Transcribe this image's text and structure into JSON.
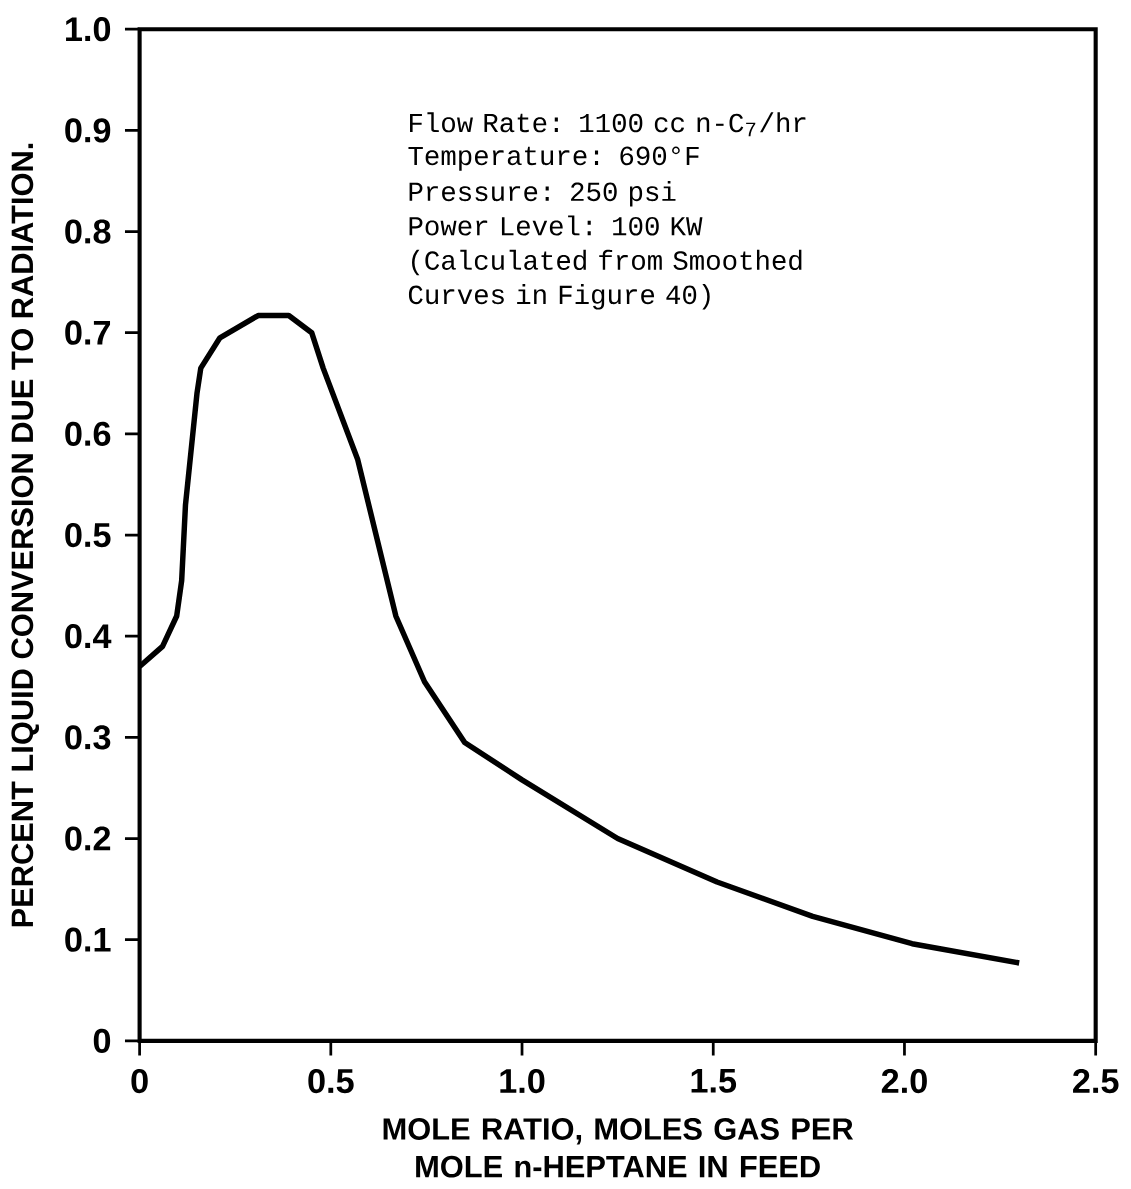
{
  "chart_data": {
    "type": "line",
    "xlabel": "MOLE RATIO, MOLES GAS PER MOLE n-HEPTANE IN FEED",
    "ylabel": "PERCENT LIQUID CONVERSION DUE TO RADIATION.",
    "annotations": [
      "Flow Rate: 1100 cc n-C$_{7}$/hr",
      "Temperature: 690°F",
      "Pressure: 250 psi",
      "Power Level: 100 KW",
      "(Calculated from Smoothed Curves in Figure 40)"
    ],
    "xlim": [
      0,
      2.5
    ],
    "ylim": [
      0,
      1.0
    ],
    "xticks": [
      0,
      0.5,
      {
        "value": 1.0,
        "label": "1.0"
      },
      1.5,
      {
        "value": 2.0,
        "label": "2.0"
      },
      2.5
    ],
    "yticks": [
      0,
      0.1,
      0.2,
      0.3,
      0.4,
      0.5,
      0.6,
      0.7,
      0.8,
      0.9,
      {
        "value": 1.0,
        "label": "1.0"
      }
    ],
    "grid": false,
    "marker": "none",
    "line_style": "solid",
    "series": [
      {
        "color": "#000000",
        "x": [
          0,
          0.06,
          0.097,
          0.11,
          0.12,
          0.15,
          0.16,
          0.21,
          0.31,
          0.39,
          0.45,
          0.48,
          0.57,
          0.67,
          0.745,
          0.85,
          1.0,
          1.25,
          1.51,
          1.76,
          2.02,
          2.3
        ],
        "values": [
          0.37,
          0.39,
          0.42,
          0.455,
          0.53,
          0.64,
          0.665,
          0.695,
          0.717,
          0.717,
          0.7,
          0.665,
          0.575,
          0.42,
          0.355,
          0.295,
          0.258,
          0.2,
          0.157,
          0.123,
          0.096,
          0.077
        ]
      }
    ]
  }
}
